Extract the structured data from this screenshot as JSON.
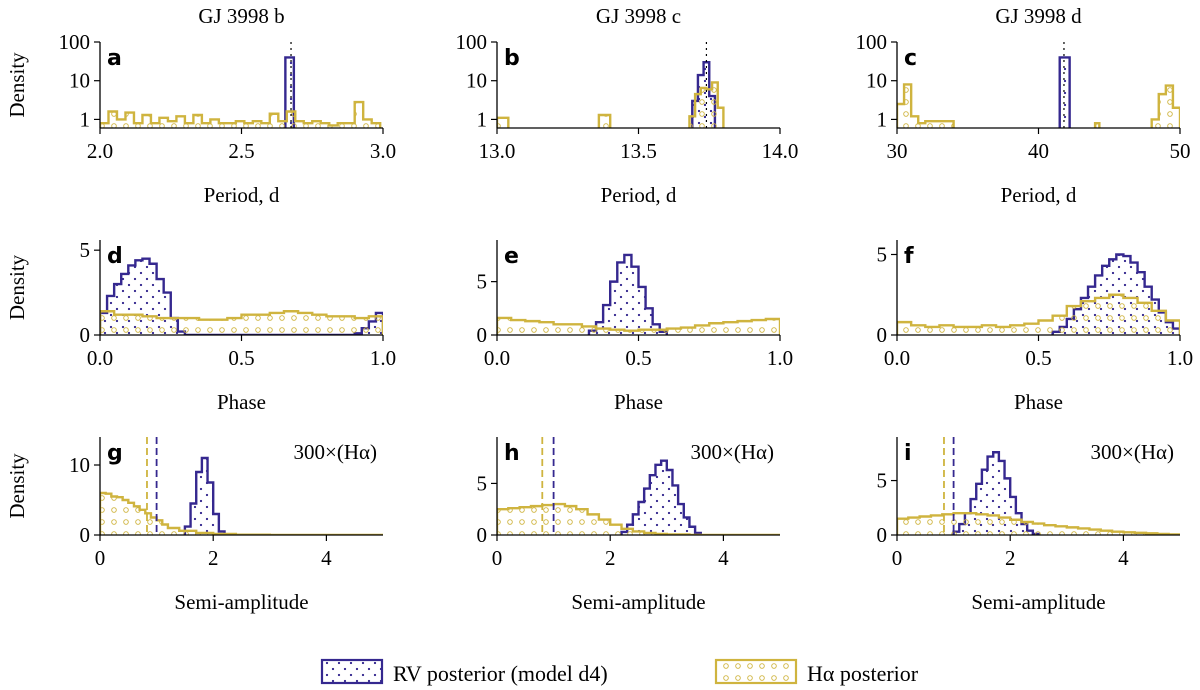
{
  "colors": {
    "rv": "#35288f",
    "ha": "#cfb43f"
  },
  "legend": {
    "rv_label": "RV posterior (model d4)",
    "ha_label": "Hα posterior"
  },
  "panel_titles": [
    "GJ 3998 b",
    "GJ 3998 c",
    "GJ 3998 d"
  ],
  "chart_data": [
    {
      "id": "a",
      "type": "histogram",
      "scale": "log",
      "ylabel": "Density",
      "xlabel": "Period, d",
      "xlim": [
        2.0,
        3.0
      ],
      "ylim": [
        0.6,
        100
      ],
      "xticks": [
        2.0,
        2.5,
        3.0
      ],
      "xtick_labels": [
        "2.0",
        "2.5",
        "3.0"
      ],
      "yticks": [
        1,
        10,
        100
      ],
      "ytick_labels": [
        "1",
        "10",
        "100"
      ],
      "vline": 2.675,
      "rv": {
        "edges": [
          2.655,
          2.685
        ],
        "values": [
          40
        ]
      },
      "ha": {
        "edges": [
          2.0,
          2.03,
          2.06,
          2.09,
          2.12,
          2.15,
          2.18,
          2.21,
          2.24,
          2.27,
          2.3,
          2.33,
          2.36,
          2.39,
          2.42,
          2.45,
          2.48,
          2.51,
          2.54,
          2.57,
          2.6,
          2.63,
          2.66,
          2.69,
          2.72,
          2.75,
          2.78,
          2.81,
          2.84,
          2.87,
          2.9,
          2.93,
          2.96,
          2.99
        ],
        "values": [
          0.8,
          1.6,
          1.0,
          1.5,
          0.8,
          1.3,
          0.8,
          1.1,
          0.9,
          1.2,
          0.8,
          1.3,
          0.8,
          1.0,
          0.8,
          0.8,
          0.9,
          0.8,
          0.9,
          0.8,
          1.4,
          0.9,
          1.6,
          0.9,
          0.8,
          0.9,
          0.8,
          0.7,
          0.8,
          0.8,
          2.8,
          1.0,
          0.8
        ]
      }
    },
    {
      "id": "b",
      "type": "histogram",
      "scale": "log",
      "ylabel": "",
      "xlabel": "Period, d",
      "xlim": [
        13.0,
        14.0
      ],
      "ylim": [
        0.6,
        100
      ],
      "xticks": [
        13.0,
        13.5,
        14.0
      ],
      "xtick_labels": [
        "13.0",
        "13.5",
        "14.0"
      ],
      "yticks": [
        1,
        10,
        100
      ],
      "ytick_labels": [
        "1",
        "10",
        "100"
      ],
      "vline": 13.74,
      "rv": {
        "edges": [
          13.69,
          13.71,
          13.73,
          13.75,
          13.77
        ],
        "values": [
          3,
          14,
          30,
          4
        ]
      },
      "ha": {
        "edges": [
          13.0,
          13.04,
          13.36,
          13.4,
          13.68,
          13.7,
          13.72,
          13.74,
          13.76,
          13.78,
          13.8
        ],
        "values": [
          1.1,
          0.3,
          1.3,
          0.3,
          1.2,
          4.5,
          6.5,
          6.0,
          9.0,
          2.0
        ]
      }
    },
    {
      "id": "c",
      "type": "histogram",
      "scale": "log",
      "ylabel": "",
      "xlabel": "Period, d",
      "xlim": [
        30,
        50
      ],
      "ylim": [
        0.6,
        100
      ],
      "xticks": [
        30,
        40,
        50
      ],
      "xtick_labels": [
        "30",
        "40",
        "50"
      ],
      "yticks": [
        1,
        10,
        100
      ],
      "ytick_labels": [
        "1",
        "10",
        "100"
      ],
      "vline": 41.8,
      "rv": {
        "edges": [
          41.5,
          42.2
        ],
        "values": [
          40
        ]
      },
      "ha": {
        "edges": [
          30.0,
          30.5,
          31.0,
          31.5,
          32.0,
          34.0,
          44.0,
          44.3,
          48.0,
          48.5,
          49.0,
          49.5,
          50.0
        ],
        "values": [
          2.5,
          8.0,
          1.2,
          0.8,
          0.9,
          0.3,
          0.8,
          0.3,
          1.0,
          4.5,
          7.5,
          2.0
        ]
      }
    },
    {
      "id": "d",
      "type": "histogram",
      "scale": "linear",
      "ylabel": "Density",
      "xlabel": "Phase",
      "xlim": [
        0,
        1
      ],
      "ylim": [
        0,
        5.6
      ],
      "xticks": [
        0,
        0.5,
        1.0
      ],
      "xtick_labels": [
        "0.0",
        "0.5",
        "1.0"
      ],
      "yticks": [
        0,
        5
      ],
      "ytick_labels": [
        "0",
        "5"
      ],
      "vline": null,
      "rv": {
        "edges": [
          0.0,
          0.025,
          0.05,
          0.075,
          0.1,
          0.125,
          0.15,
          0.175,
          0.2,
          0.225,
          0.25,
          0.275,
          0.3,
          0.9,
          0.925,
          0.95,
          0.975,
          1.0
        ],
        "values": [
          1.3,
          2.3,
          3.0,
          3.6,
          4.1,
          4.4,
          4.5,
          4.2,
          3.3,
          2.5,
          1.0,
          0.2,
          0.0,
          0.1,
          0.4,
          0.8,
          1.3
        ]
      },
      "ha": {
        "edges": [
          0.0,
          0.05,
          0.1,
          0.15,
          0.2,
          0.25,
          0.3,
          0.35,
          0.4,
          0.45,
          0.5,
          0.55,
          0.6,
          0.65,
          0.7,
          0.75,
          0.8,
          0.85,
          0.9,
          0.95,
          1.0
        ],
        "values": [
          1.4,
          1.2,
          1.2,
          1.1,
          1.0,
          1.0,
          1.0,
          0.9,
          0.9,
          1.0,
          1.2,
          1.2,
          1.3,
          1.4,
          1.3,
          1.2,
          1.1,
          1.1,
          1.0,
          1.1
        ]
      }
    },
    {
      "id": "e",
      "type": "histogram",
      "scale": "linear",
      "ylabel": "",
      "xlabel": "Phase",
      "xlim": [
        0,
        1
      ],
      "ylim": [
        0,
        8.9
      ],
      "xticks": [
        0,
        0.5,
        1.0
      ],
      "xtick_labels": [
        "0.0",
        "0.5",
        "1.0"
      ],
      "yticks": [
        0,
        5
      ],
      "ytick_labels": [
        "0",
        "5"
      ],
      "vline": null,
      "rv": {
        "edges": [
          0.325,
          0.35,
          0.375,
          0.4,
          0.425,
          0.45,
          0.475,
          0.5,
          0.525,
          0.55,
          0.575,
          0.6
        ],
        "values": [
          0.4,
          1.2,
          2.8,
          5.0,
          6.8,
          7.5,
          6.4,
          4.5,
          2.5,
          1.0,
          0.3
        ]
      },
      "ha": {
        "edges": [
          0.0,
          0.05,
          0.1,
          0.15,
          0.2,
          0.25,
          0.3,
          0.35,
          0.4,
          0.45,
          0.5,
          0.55,
          0.6,
          0.65,
          0.7,
          0.75,
          0.8,
          0.85,
          0.9,
          0.95,
          1.0
        ],
        "values": [
          1.6,
          1.4,
          1.3,
          1.2,
          1.0,
          1.0,
          0.8,
          0.6,
          0.5,
          0.4,
          0.5,
          0.5,
          0.6,
          0.7,
          0.9,
          1.1,
          1.2,
          1.3,
          1.4,
          1.5
        ]
      }
    },
    {
      "id": "f",
      "type": "histogram",
      "scale": "linear",
      "ylabel": "",
      "xlabel": "Phase",
      "xlim": [
        0,
        1
      ],
      "ylim": [
        0,
        5.9
      ],
      "xticks": [
        0,
        0.5,
        1.0
      ],
      "xtick_labels": [
        "0.0",
        "0.5",
        "1.0"
      ],
      "yticks": [
        0,
        5
      ],
      "ytick_labels": [
        "0",
        "5"
      ],
      "vline": null,
      "rv": {
        "edges": [
          0.55,
          0.575,
          0.6,
          0.625,
          0.65,
          0.675,
          0.7,
          0.725,
          0.75,
          0.775,
          0.8,
          0.825,
          0.85,
          0.875,
          0.9,
          0.925,
          0.95,
          0.975,
          1.0
        ],
        "values": [
          0.2,
          0.5,
          1.0,
          1.6,
          2.3,
          3.0,
          3.7,
          4.3,
          4.7,
          5.0,
          4.9,
          4.5,
          3.9,
          3.0,
          2.2,
          1.4,
          0.8,
          0.4
        ]
      },
      "ha": {
        "edges": [
          0.0,
          0.05,
          0.1,
          0.15,
          0.2,
          0.25,
          0.3,
          0.35,
          0.4,
          0.45,
          0.5,
          0.55,
          0.6,
          0.65,
          0.7,
          0.75,
          0.8,
          0.85,
          0.9,
          0.95,
          1.0
        ],
        "values": [
          0.8,
          0.6,
          0.5,
          0.6,
          0.5,
          0.5,
          0.6,
          0.5,
          0.6,
          0.7,
          0.9,
          1.2,
          1.8,
          2.1,
          2.3,
          2.5,
          2.3,
          2.0,
          1.5,
          0.9
        ]
      }
    },
    {
      "id": "g",
      "type": "histogram",
      "scale": "linear",
      "ylabel": "Density",
      "xlabel": "Semi-amplitude",
      "annotation": "300×(Hα)",
      "xlim": [
        0,
        5
      ],
      "ylim": [
        0,
        14
      ],
      "xticks": [
        0,
        2,
        4
      ],
      "xtick_labels": [
        "0",
        "2",
        "4"
      ],
      "yticks": [
        0,
        10
      ],
      "ytick_labels": [
        "0",
        "10"
      ],
      "vlines": [
        {
          "x": 0.83,
          "series": "ha"
        },
        {
          "x": 1.0,
          "series": "rv"
        }
      ],
      "rv": {
        "edges": [
          1.5,
          1.6,
          1.7,
          1.8,
          1.9,
          2.0,
          2.1,
          2.2
        ],
        "values": [
          1.2,
          4.5,
          9.0,
          11.0,
          7.5,
          3.0,
          0.5
        ]
      },
      "ha": {
        "edges": [
          0.0,
          0.1,
          0.2,
          0.3,
          0.4,
          0.5,
          0.6,
          0.7,
          0.8,
          0.9,
          1.0,
          1.1,
          1.2,
          1.4,
          1.7,
          2.0,
          2.4,
          3.0,
          5.0
        ],
        "values": [
          6.0,
          5.9,
          5.5,
          5.4,
          5.0,
          4.6,
          4.1,
          3.6,
          3.1,
          2.5,
          2.1,
          1.5,
          1.0,
          0.6,
          0.3,
          0.15,
          0.05,
          0.0
        ]
      }
    },
    {
      "id": "h",
      "type": "histogram",
      "scale": "linear",
      "ylabel": "",
      "xlabel": "Semi-amplitude",
      "annotation": "300×(Hα)",
      "xlim": [
        0,
        5
      ],
      "ylim": [
        0,
        9.5
      ],
      "xticks": [
        0,
        2,
        4
      ],
      "xtick_labels": [
        "0",
        "2",
        "4"
      ],
      "yticks": [
        0,
        5
      ],
      "ytick_labels": [
        "0",
        "5"
      ],
      "vlines": [
        {
          "x": 0.8,
          "series": "ha"
        },
        {
          "x": 1.0,
          "series": "rv"
        }
      ],
      "rv": {
        "edges": [
          2.2,
          2.3,
          2.4,
          2.5,
          2.6,
          2.7,
          2.8,
          2.9,
          3.0,
          3.1,
          3.2,
          3.3,
          3.4,
          3.5,
          3.6
        ],
        "values": [
          0.3,
          1.0,
          2.0,
          3.2,
          4.5,
          5.8,
          6.8,
          7.2,
          6.3,
          4.8,
          3.0,
          1.7,
          0.8,
          0.2
        ]
      },
      "ha": {
        "edges": [
          0.0,
          0.2,
          0.4,
          0.6,
          0.8,
          1.0,
          1.2,
          1.4,
          1.6,
          1.8,
          2.0,
          2.2,
          2.4,
          2.6,
          2.8,
          3.0,
          3.4,
          5.0
        ],
        "values": [
          2.5,
          2.6,
          2.7,
          2.8,
          2.9,
          3.0,
          2.8,
          2.5,
          2.0,
          1.5,
          1.0,
          0.6,
          0.35,
          0.2,
          0.1,
          0.05,
          0.0
        ]
      }
    },
    {
      "id": "i",
      "type": "histogram",
      "scale": "linear",
      "ylabel": "",
      "xlabel": "Semi-amplitude",
      "annotation": "300×(Hα)",
      "xlim": [
        0,
        5
      ],
      "ylim": [
        0,
        9.0
      ],
      "xticks": [
        0,
        2,
        4
      ],
      "xtick_labels": [
        "0",
        "2",
        "4"
      ],
      "yticks": [
        0,
        5
      ],
      "ytick_labels": [
        "0",
        "5"
      ],
      "vlines": [
        {
          "x": 0.83,
          "series": "ha"
        },
        {
          "x": 1.0,
          "series": "rv"
        }
      ],
      "rv": {
        "edges": [
          1.0,
          1.1,
          1.2,
          1.3,
          1.4,
          1.5,
          1.6,
          1.7,
          1.8,
          1.9,
          2.0,
          2.1,
          2.2,
          2.3,
          2.4,
          2.5
        ],
        "values": [
          0.3,
          1.0,
          2.0,
          3.3,
          4.7,
          6.0,
          7.2,
          7.6,
          6.8,
          5.2,
          3.5,
          2.0,
          1.0,
          0.4,
          0.1
        ]
      },
      "ha": {
        "edges": [
          0.0,
          0.2,
          0.4,
          0.6,
          0.8,
          1.0,
          1.2,
          1.4,
          1.6,
          1.8,
          2.0,
          2.2,
          2.4,
          2.6,
          2.8,
          3.0,
          3.2,
          3.4,
          3.6,
          3.8,
          4.0,
          4.2,
          4.4,
          4.6,
          4.8,
          5.0
        ],
        "values": [
          1.5,
          1.6,
          1.7,
          1.8,
          1.9,
          2.0,
          2.0,
          1.9,
          1.8,
          1.6,
          1.4,
          1.2,
          1.05,
          0.9,
          0.8,
          0.7,
          0.6,
          0.5,
          0.4,
          0.3,
          0.25,
          0.2,
          0.15,
          0.1,
          0.05
        ]
      }
    }
  ]
}
